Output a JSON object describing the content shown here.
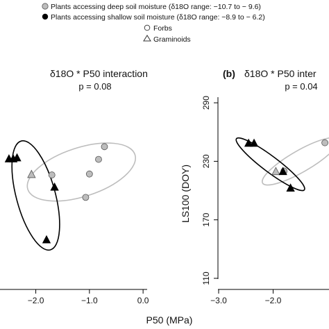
{
  "legend": {
    "entries": [
      {
        "marker": "grey-circle",
        "label": "Plants accessing deep soil moisture (δ18O range: −10.7 to − 9.6)"
      },
      {
        "marker": "black-circle",
        "label": "Plants accessing shallow soil moisture (δ18O range: −8.9 to − 6.2)"
      },
      {
        "marker": "open-circle",
        "label": "Forbs"
      },
      {
        "marker": "open-triangle",
        "label": "Graminoids"
      }
    ]
  },
  "chart_data": [
    {
      "type": "scatter",
      "panel_label": "",
      "title": "δ18O * P50 interaction",
      "annotation": "p = 0.08",
      "xlabel": "P50 (MPa)",
      "ylabel": "",
      "xlim": [
        -2.9,
        0.05
      ],
      "ylim": [
        110,
        310
      ],
      "x_ticks": [
        -2.0,
        -1.0,
        0.0
      ],
      "x_tick_labels": [
        "−2.0",
        "−1.0",
        "0.0"
      ],
      "y_ticks": [],
      "y_tick_labels": [],
      "grid": false,
      "colors": {
        "deep": "#bdbdbd",
        "shallow": "#000000"
      },
      "series": [
        {
          "name": "Plants accessing deep soil moisture",
          "points": [
            {
              "x": -0.72,
              "y": 245,
              "marker": "circle"
            },
            {
              "x": -0.83,
              "y": 232,
              "marker": "circle"
            },
            {
              "x": -1.0,
              "y": 217,
              "marker": "circle"
            },
            {
              "x": -1.7,
              "y": 216,
              "marker": "circle"
            },
            {
              "x": -1.07,
              "y": 193,
              "marker": "circle"
            },
            {
              "x": -2.08,
              "y": 217,
              "marker": "triangle"
            }
          ],
          "ellipse": {
            "cx": -1.15,
            "cy": 219,
            "rx": 1.05,
            "ry": 25,
            "angle_deg": -18
          }
        },
        {
          "name": "Plants accessing shallow soil moisture",
          "points": [
            {
              "x": -2.5,
              "y": 233,
              "marker": "triangle"
            },
            {
              "x": -2.42,
              "y": 233,
              "marker": "triangle"
            },
            {
              "x": -2.35,
              "y": 234,
              "marker": "triangle"
            },
            {
              "x": -1.65,
              "y": 204,
              "marker": "triangle"
            },
            {
              "x": -1.8,
              "y": 150,
              "marker": "triangle"
            }
          ],
          "ellipse": {
            "cx": -2.0,
            "cy": 195,
            "rx": 1.05,
            "ry": 20,
            "angle_deg": 75
          }
        }
      ]
    },
    {
      "type": "scatter",
      "panel_label": "(b)",
      "title": "δ18O * P50 inter",
      "annotation": "p = 0.04",
      "xlabel": "",
      "ylabel": "LS100 (DOY)",
      "xlim": [
        -3.0,
        -1.0
      ],
      "ylim": [
        110,
        310
      ],
      "x_ticks": [
        -3.0,
        -2.0
      ],
      "x_tick_labels": [
        "−3.0",
        "−2.0"
      ],
      "y_ticks": [
        110,
        170,
        230,
        290
      ],
      "y_tick_labels": [
        "110",
        "170",
        "230",
        "290"
      ],
      "grid": false,
      "colors": {
        "deep": "#bdbdbd",
        "shallow": "#000000"
      },
      "series": [
        {
          "name": "Plants accessing deep soil moisture",
          "points": [
            {
              "x": -1.05,
              "y": 249,
              "marker": "circle"
            },
            {
              "x": -1.8,
              "y": 220,
              "marker": "circle"
            },
            {
              "x": -1.95,
              "y": 220,
              "marker": "triangle"
            }
          ],
          "ellipse": {
            "cx": -1.5,
            "cy": 230,
            "rx": 0.8,
            "ry": 11,
            "angle_deg": -30
          }
        },
        {
          "name": "Plants accessing shallow soil moisture",
          "points": [
            {
              "x": -2.45,
              "y": 249,
              "marker": "triangle"
            },
            {
              "x": -2.35,
              "y": 249,
              "marker": "triangle"
            },
            {
              "x": -1.82,
              "y": 220,
              "marker": "triangle"
            },
            {
              "x": -1.68,
              "y": 203,
              "marker": "triangle"
            }
          ],
          "ellipse": {
            "cx": -2.05,
            "cy": 227,
            "rx": 0.78,
            "ry": 8,
            "angle_deg": 37
          }
        }
      ]
    }
  ]
}
